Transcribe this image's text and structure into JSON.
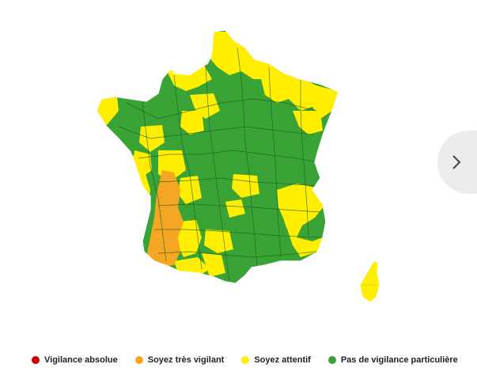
{
  "colors": {
    "absolute": "#cc0000",
    "very_vigilant": "#f5a623",
    "attentive": "#ffee00",
    "none": "#3aa335",
    "border": "#1e5c1c"
  },
  "legend": [
    {
      "label": "Vigilance absolue",
      "color": "#cc0000"
    },
    {
      "label": "Soyez très vigilant",
      "color": "#f5a623"
    },
    {
      "label": "Soyez attentif",
      "color": "#ffee00"
    },
    {
      "label": "Pas de vigilance particulière",
      "color": "#3aa335"
    }
  ],
  "next_icon": "chevron-right-icon"
}
